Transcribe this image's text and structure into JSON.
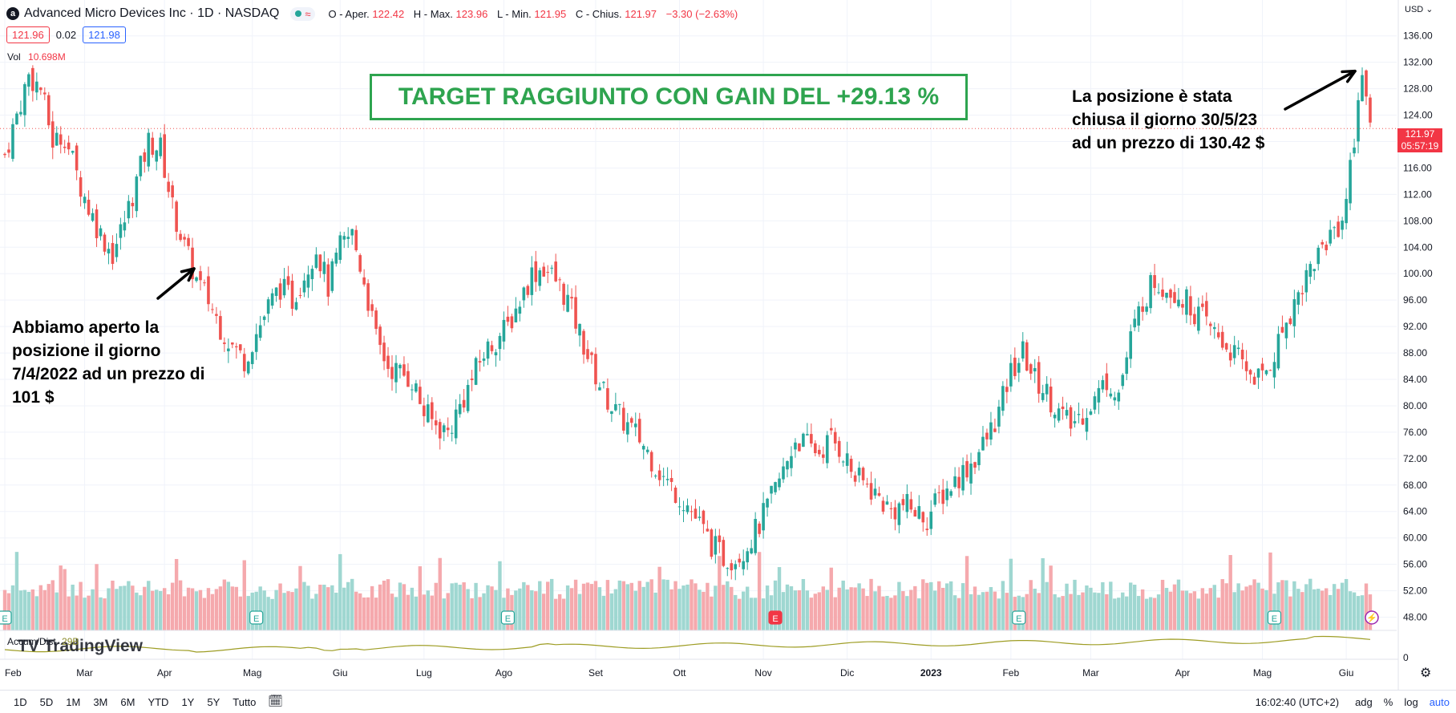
{
  "header": {
    "logo": "a",
    "title": "Advanced Micro Devices Inc · 1D · NASDAQ",
    "ohlc": [
      {
        "label": "O - Aper.",
        "value": "122.42"
      },
      {
        "label": "H - Max.",
        "value": "123.96"
      },
      {
        "label": "L - Min.",
        "value": "121.95"
      },
      {
        "label": "C - Chius.",
        "value": "121.97"
      }
    ],
    "change": "−3.30 (−2.63%)",
    "wave_icon": "≈"
  },
  "price_boxes": {
    "bid": "121.96",
    "spread": "0.02",
    "ask": "121.98"
  },
  "volume": {
    "label": "Vol",
    "value": "10.698M"
  },
  "target_text": "TARGET RAGGIUNTO CON GAIN DEL +29.13 %",
  "note_open": "Abbiamo aperto la\nposizione il giorno\n7/4/2022 ad un prezzo di\n101 $",
  "note_close": "La posizione è stata\nchiusa il giorno 30/5/23\nad un prezzo di 130.42 $",
  "current_price": {
    "price": "121.97",
    "countdown": "05:57:19"
  },
  "currency": "USD",
  "indicator": {
    "name": "Accum/Dist",
    "value": "29B"
  },
  "indicator_scale_label": "0",
  "watermark": "TradingView",
  "timeframes": [
    "1D",
    "5D",
    "1M",
    "3M",
    "6M",
    "YTD",
    "1Y",
    "5Y",
    "Tutto"
  ],
  "footer": {
    "time": "16:02:40 (UTC+2)",
    "adj": "adg",
    "pct": "%",
    "log": "log",
    "auto": "auto"
  },
  "colors": {
    "up": "#26a69a",
    "down": "#ef5350",
    "vol_up": "#9fd7d1",
    "vol_down": "#f5a9ad",
    "accent": "#2ea44f"
  },
  "chart_data": {
    "type": "candlestick",
    "title": "Advanced Micro Devices Inc · 1D · NASDAQ",
    "ylabel": "USD",
    "ylim": [
      46,
      139
    ],
    "y_ticks": [
      136,
      132,
      128,
      124,
      120,
      116,
      112,
      108,
      104,
      100,
      96,
      92,
      88,
      84,
      80,
      76,
      72,
      68,
      64,
      60,
      56,
      52,
      48
    ],
    "x_month_labels": [
      "Feb",
      "Mar",
      "Apr",
      "Mag",
      "Giu",
      "Lug",
      "Ago",
      "Set",
      "Ott",
      "Nov",
      "Dic",
      "2023",
      "Feb",
      "Mar",
      "Apr",
      "Mag",
      "Giu"
    ],
    "x_month_day_index": [
      0,
      20,
      40,
      62,
      84,
      105,
      125,
      148,
      169,
      190,
      211,
      232,
      252,
      272,
      295,
      315,
      336
    ],
    "close_path": [
      [
        0,
        118
      ],
      [
        3,
        124
      ],
      [
        6,
        130
      ],
      [
        9,
        128
      ],
      [
        12,
        120
      ],
      [
        15,
        121
      ],
      [
        18,
        115
      ],
      [
        21,
        110
      ],
      [
        24,
        106
      ],
      [
        27,
        103
      ],
      [
        30,
        108
      ],
      [
        33,
        114
      ],
      [
        36,
        120
      ],
      [
        39,
        119
      ],
      [
        42,
        110
      ],
      [
        45,
        104
      ],
      [
        48,
        99
      ],
      [
        51,
        96
      ],
      [
        54,
        92
      ],
      [
        57,
        89
      ],
      [
        60,
        87
      ],
      [
        63,
        91
      ],
      [
        66,
        95
      ],
      [
        69,
        98
      ],
      [
        72,
        96
      ],
      [
        75,
        100
      ],
      [
        78,
        104
      ],
      [
        81,
        98
      ],
      [
        84,
        104
      ],
      [
        87,
        106
      ],
      [
        90,
        99
      ],
      [
        93,
        90
      ],
      [
        96,
        86
      ],
      [
        99,
        85
      ],
      [
        102,
        84
      ],
      [
        105,
        79
      ],
      [
        108,
        77
      ],
      [
        111,
        76
      ],
      [
        114,
        80
      ],
      [
        117,
        84
      ],
      [
        120,
        88
      ],
      [
        123,
        90
      ],
      [
        126,
        92
      ],
      [
        129,
        96
      ],
      [
        132,
        100
      ],
      [
        135,
        101
      ],
      [
        138,
        99
      ],
      [
        141,
        96
      ],
      [
        144,
        91
      ],
      [
        147,
        86
      ],
      [
        150,
        82
      ],
      [
        153,
        79
      ],
      [
        156,
        77
      ],
      [
        159,
        75
      ],
      [
        162,
        72
      ],
      [
        165,
        69
      ],
      [
        168,
        67
      ],
      [
        171,
        65
      ],
      [
        174,
        62
      ],
      [
        177,
        59
      ],
      [
        180,
        57
      ],
      [
        183,
        57
      ],
      [
        186,
        59
      ],
      [
        189,
        62
      ],
      [
        192,
        66
      ],
      [
        195,
        70
      ],
      [
        198,
        75
      ],
      [
        201,
        74
      ],
      [
        204,
        73
      ],
      [
        207,
        75
      ],
      [
        210,
        73
      ],
      [
        213,
        69
      ],
      [
        216,
        68
      ],
      [
        219,
        66
      ],
      [
        222,
        64
      ],
      [
        225,
        65
      ],
      [
        228,
        64
      ],
      [
        231,
        63
      ],
      [
        234,
        66
      ],
      [
        237,
        68
      ],
      [
        240,
        70
      ],
      [
        243,
        72
      ],
      [
        246,
        75
      ],
      [
        249,
        79
      ],
      [
        252,
        85
      ],
      [
        255,
        88
      ],
      [
        258,
        84
      ],
      [
        261,
        82
      ],
      [
        264,
        79
      ],
      [
        267,
        77
      ],
      [
        270,
        79
      ],
      [
        273,
        81
      ],
      [
        276,
        84
      ],
      [
        279,
        82
      ],
      [
        282,
        90
      ],
      [
        285,
        96
      ],
      [
        288,
        99
      ],
      [
        291,
        98
      ],
      [
        294,
        97
      ],
      [
        297,
        95
      ],
      [
        300,
        93
      ],
      [
        303,
        91
      ],
      [
        306,
        89
      ],
      [
        309,
        87
      ],
      [
        312,
        85
      ],
      [
        315,
        84
      ],
      [
        318,
        88
      ],
      [
        321,
        93
      ],
      [
        324,
        97
      ],
      [
        327,
        101
      ],
      [
        330,
        104
      ],
      [
        333,
        107
      ],
      [
        335,
        108
      ],
      [
        338,
        120
      ],
      [
        339,
        128
      ],
      [
        340,
        130
      ],
      [
        341,
        125
      ],
      [
        342,
        122
      ]
    ],
    "volume_range": [
      0,
      100
    ],
    "events": [
      {
        "type": "earnings",
        "label": "E",
        "day_index": 0
      },
      {
        "type": "earnings",
        "label": "E",
        "day_index": 63
      },
      {
        "type": "earnings",
        "label": "E",
        "day_index": 126
      },
      {
        "type": "earnings",
        "label": "E",
        "day_index": 193,
        "style": "negative"
      },
      {
        "type": "earnings",
        "label": "E",
        "day_index": 254
      },
      {
        "type": "earnings",
        "label": "E",
        "day_index": 318
      }
    ],
    "annotations": [
      {
        "text": "Abbiamo aperto la posizione il giorno 7/4/2022 ad un prezzo di 101 $",
        "day_index": 47,
        "price": 101
      },
      {
        "text": "La posizione è stata chiusa il giorno 30/5/23 ad un prezzo di 130.42 $",
        "day_index": 339,
        "price": 130.42
      }
    ],
    "last_price": 121.97
  }
}
